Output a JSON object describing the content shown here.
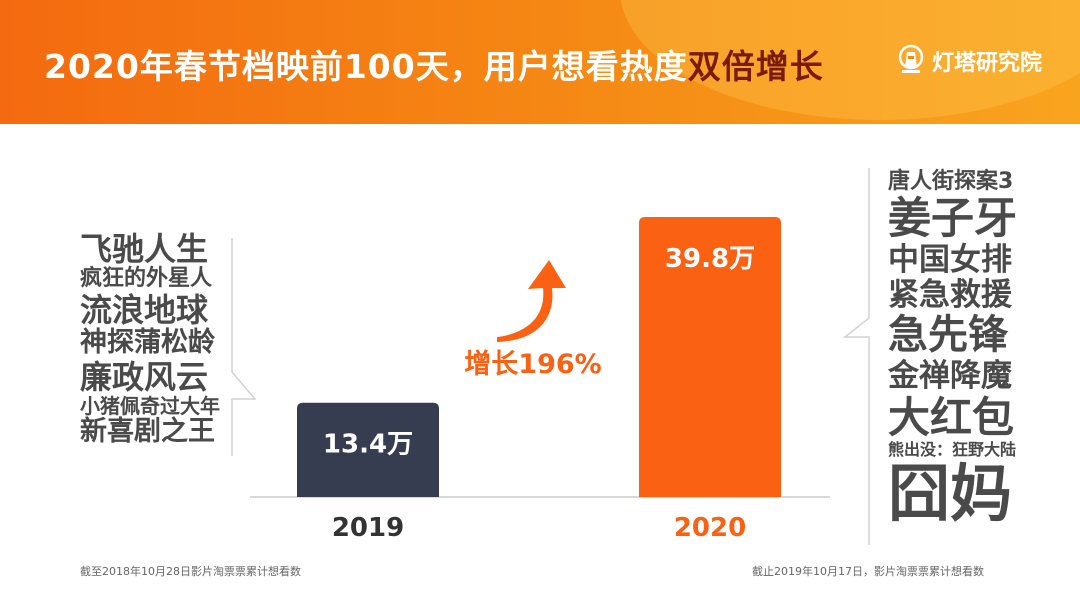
{
  "header": {
    "title_main": "2020年春节档映前100天，用户想看热度",
    "title_highlight": "双倍增长",
    "brand": "灯塔研究院"
  },
  "chart_data": {
    "type": "bar",
    "categories": [
      "2019",
      "2020"
    ],
    "values": [
      13.4,
      39.8
    ],
    "value_labels": [
      "13.4万",
      "39.8万"
    ],
    "bar_colors": [
      "#363d50",
      "#fb6113"
    ],
    "category_colors": [
      "#333333",
      "#fb6113"
    ],
    "growth_label": "增长196%",
    "accent": "#fb6113"
  },
  "left_films": [
    {
      "name": "飞驰人生",
      "size": 32
    },
    {
      "name": "疯狂的外星人",
      "size": 22
    },
    {
      "name": "流浪地球",
      "size": 32
    },
    {
      "name": "神探蒲松龄",
      "size": 27
    },
    {
      "name": "廉政风云",
      "size": 32
    },
    {
      "name": "小猪佩奇过大年",
      "size": 20
    },
    {
      "name": "新喜剧之王",
      "size": 27
    }
  ],
  "right_films": [
    {
      "name": "唐人街探案3",
      "size": 22
    },
    {
      "name": "姜子牙",
      "size": 43
    },
    {
      "name": "中国女排",
      "size": 31
    },
    {
      "name": "紧急救援",
      "size": 31
    },
    {
      "name": "急先锋",
      "size": 40
    },
    {
      "name": "金禅降魔",
      "size": 31
    },
    {
      "name": "大红包",
      "size": 42
    },
    {
      "name": "熊出没：狂野大陆",
      "size": 16
    },
    {
      "name": "囧妈",
      "size": 62
    }
  ],
  "footnotes": {
    "left": "截至2018年10月28日影片淘票票累计想看数",
    "right": "截止2019年10月17日，影片淘票票累计想看数"
  }
}
